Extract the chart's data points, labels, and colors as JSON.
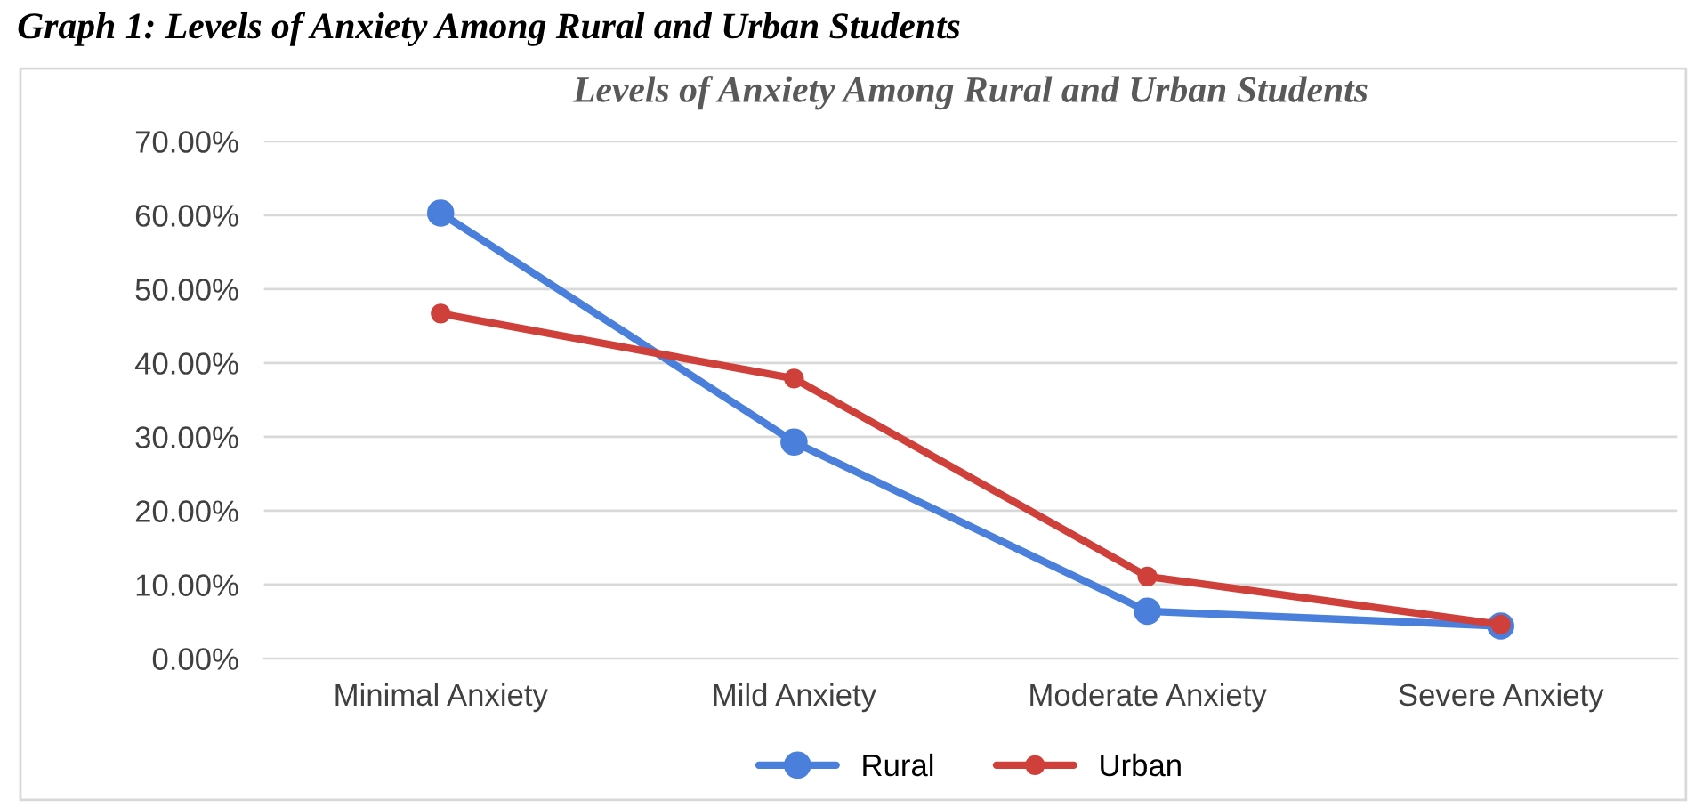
{
  "chart_data": {
    "type": "line",
    "title": "Levels of Anxiety Among Rural and Urban Students",
    "annotations": [
      "Graph 1: Levels of Anxiety Among Rural and Urban Students"
    ],
    "categories": [
      "Minimal Anxiety",
      "Mild Anxiety",
      "Moderate Anxiety",
      "Severe Anxiety"
    ],
    "series": [
      {
        "name": "Rural",
        "color": "#4a7fdc",
        "values": [
          60.3,
          29.3,
          6.4,
          4.4
        ]
      },
      {
        "name": "Urban",
        "color": "#d0403a",
        "values": [
          46.7,
          37.9,
          11.1,
          4.6
        ]
      }
    ],
    "ylim": [
      0,
      70
    ],
    "yticks": [
      {
        "value": 0,
        "label": "0.00%"
      },
      {
        "value": 10,
        "label": "10.00%"
      },
      {
        "value": 20,
        "label": "20.00%"
      },
      {
        "value": 30,
        "label": "30.00%"
      },
      {
        "value": 40,
        "label": "40.00%"
      },
      {
        "value": 50,
        "label": "50.00%"
      },
      {
        "value": 60,
        "label": "60.00%"
      },
      {
        "value": 70,
        "label": "70.00%"
      }
    ],
    "grid": "y",
    "legend": "bottom",
    "marker": "circle",
    "line_style": "solid"
  }
}
